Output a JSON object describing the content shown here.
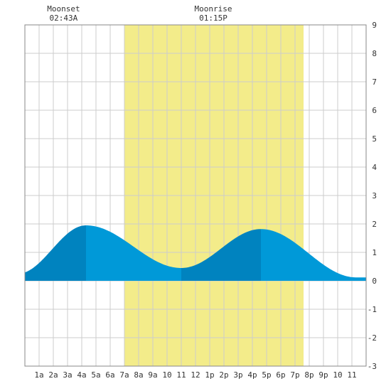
{
  "chart_data": {
    "type": "area",
    "title": "",
    "xlabel": "",
    "ylabel": "",
    "xlim": [
      0,
      24
    ],
    "ylim": [
      -3,
      9
    ],
    "grid": true,
    "x_tick_labels": [
      "1a",
      "2a",
      "3a",
      "4a",
      "5a",
      "6a",
      "7a",
      "8a",
      "9a",
      "10",
      "11",
      "12",
      "1p",
      "2p",
      "3p",
      "4p",
      "5p",
      "6p",
      "7p",
      "8p",
      "9p",
      "10",
      "11"
    ],
    "y_tick_labels": [
      "9",
      "8",
      "7",
      "6",
      "5",
      "4",
      "3",
      "2",
      "1",
      "0",
      "-1",
      "-2",
      "-3"
    ],
    "daylight": {
      "start_hour": 7.0,
      "end_hour": 19.6
    },
    "tide": {
      "extremes": [
        {
          "hour": -0.5,
          "height": 0.25
        },
        {
          "hour": 4.3,
          "height": 1.95
        },
        {
          "hour": 11.0,
          "height": 0.45
        },
        {
          "hour": 16.6,
          "height": 1.82
        },
        {
          "hour": 23.3,
          "height": 0.12
        }
      ],
      "shading_breaks": [
        4.3,
        11.0,
        16.6
      ]
    },
    "moon_events": [
      {
        "label": "Moonset",
        "time": "02:43A",
        "hour": 2.72
      },
      {
        "label": "Moonrise",
        "time": "01:15P",
        "hour": 13.25
      }
    ],
    "colors": {
      "daylight": "#f3ec8a",
      "tide_dark": "#0083bf",
      "tide_light": "#0099d8",
      "grid": "#cccccc",
      "border": "#888888"
    }
  }
}
